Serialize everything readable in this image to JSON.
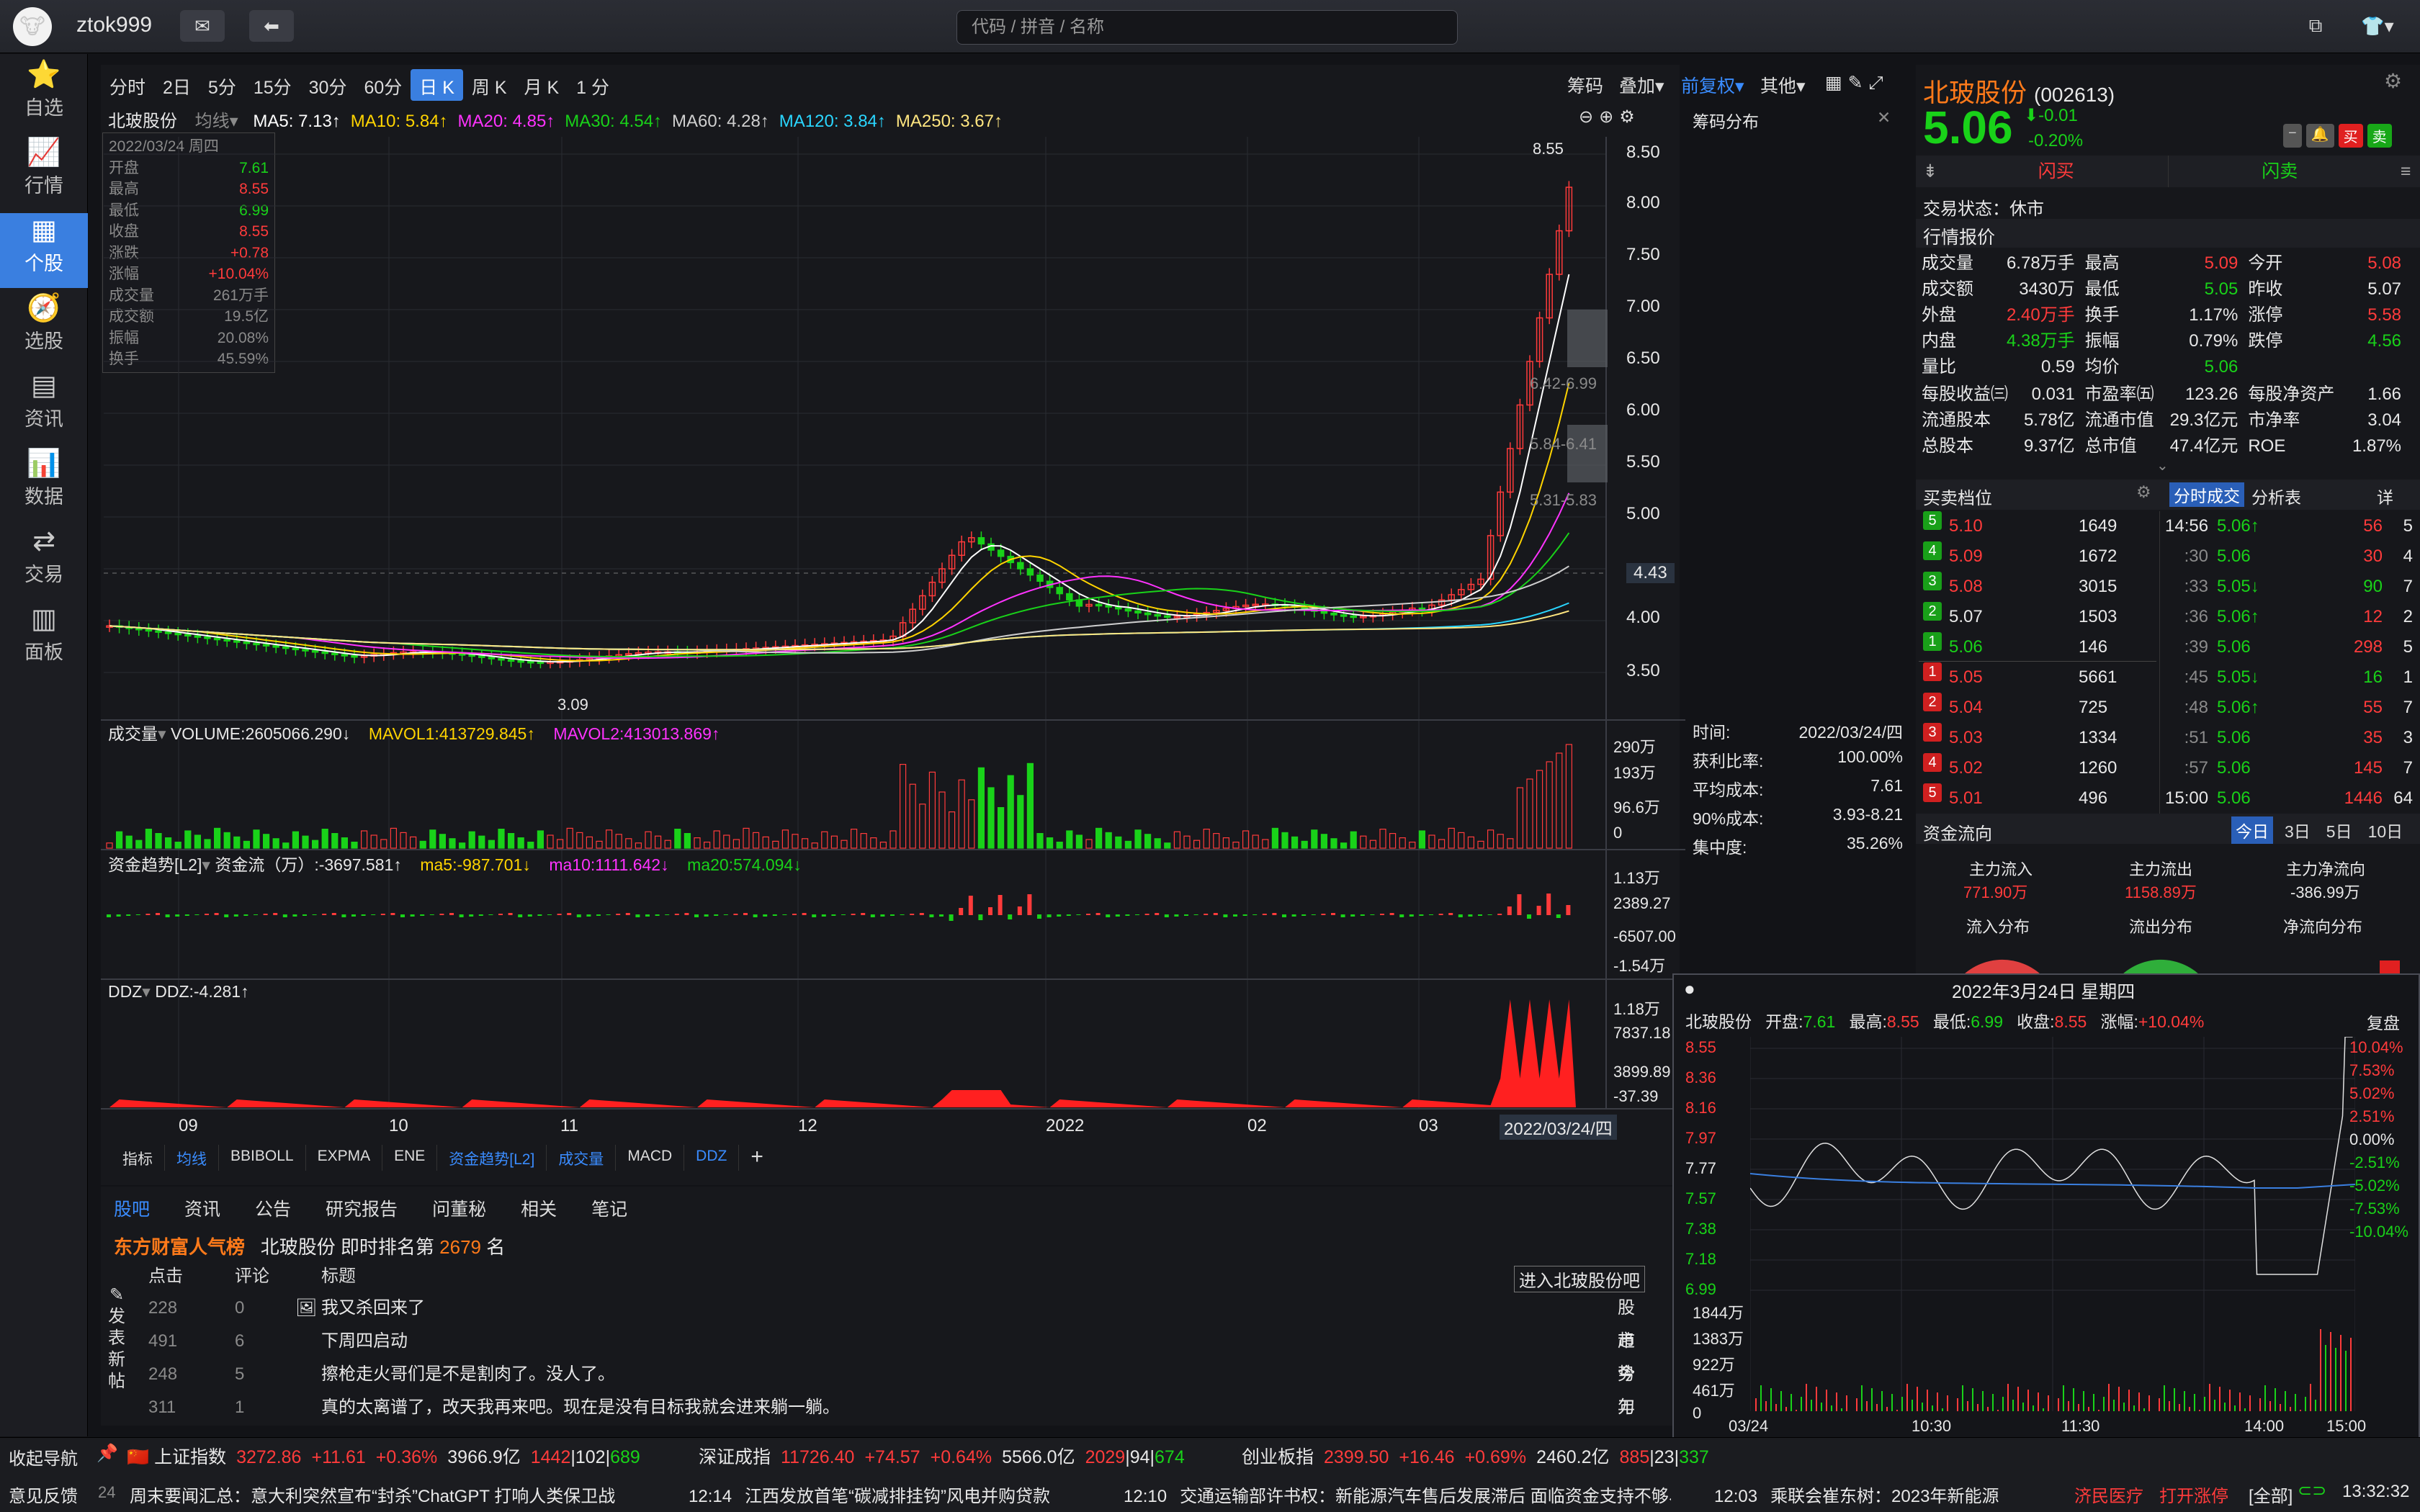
{
  "app": {
    "user": "ztok999",
    "search_placeholder": "代码 / 拼音 / 名称"
  },
  "nav": [
    {
      "label": "自选",
      "icon": "star-icon"
    },
    {
      "label": "行情",
      "icon": "chart-line-icon"
    },
    {
      "label": "个股",
      "icon": "grid-icon"
    },
    {
      "label": "选股",
      "icon": "compass-icon"
    },
    {
      "label": "资讯",
      "icon": "news-icon"
    },
    {
      "label": "数据",
      "icon": "bar-chart-icon"
    },
    {
      "label": "交易",
      "icon": "trade-icon"
    },
    {
      "label": "面板",
      "icon": "panel-icon"
    }
  ],
  "periods": [
    "分时",
    "2日",
    "5分",
    "15分",
    "30分",
    "60分",
    "日 K",
    "周 K",
    "月 K",
    "1 分"
  ],
  "period_selected": "日 K",
  "toolbar_right": {
    "chip": "筹码",
    "overlay": "叠加",
    "adjust": "前复权",
    "other": "其他"
  },
  "stock": {
    "name": "北玻股份",
    "code": "(002613)",
    "price": "5.06",
    "change": "-0.01",
    "pct": "-0.20%",
    "ma_label": "均线",
    "chip_title": "筹码分布"
  },
  "ma": [
    {
      "t": "MA5: 7.13",
      "c": "#ffffff"
    },
    {
      "t": "MA10: 5.84",
      "c": "#ffd400"
    },
    {
      "t": "MA20: 4.85",
      "c": "#ff33ff"
    },
    {
      "t": "MA30: 4.54",
      "c": "#19d219"
    },
    {
      "t": "MA60: 4.28",
      "c": "#cfcfcf"
    },
    {
      "t": "MA120: 3.84",
      "c": "#2ad6ff"
    },
    {
      "t": "MA250: 3.67",
      "c": "#ffe680"
    }
  ],
  "infobox": {
    "date": "2022/03/24 周四",
    "rows": [
      [
        "开盘",
        "7.61",
        "grn"
      ],
      [
        "最高",
        "8.55",
        "red"
      ],
      [
        "最低",
        "6.99",
        "grn"
      ],
      [
        "收盘",
        "8.55",
        "red"
      ],
      [
        "涨跌",
        "+0.78",
        "red"
      ],
      [
        "涨幅",
        "+10.04%",
        "red"
      ],
      [
        "成交量",
        "261万手",
        "gry"
      ],
      [
        "成交额",
        "19.5亿",
        "gry"
      ],
      [
        "振幅",
        "20.08%",
        "gry"
      ],
      [
        "换手",
        "45.59%",
        "gry"
      ]
    ]
  },
  "price_axis": [
    "8.50",
    "8.00",
    "7.50",
    "7.00",
    "6.50",
    "6.00",
    "5.50",
    "5.00",
    "4.43",
    "4.00",
    "3.50"
  ],
  "price_marks": {
    "high": "8.55",
    "low": "3.09"
  },
  "chip_labels": [
    "6.42-6.99",
    "5.84-6.41",
    "5.31-5.83"
  ],
  "chip_info": {
    "rows": [
      [
        "时间:",
        "2022/03/24/四"
      ],
      [
        "获利比率:",
        "100.00%"
      ],
      [
        "平均成本:",
        "7.61"
      ],
      [
        "90%成本:",
        "3.93-8.21"
      ],
      [
        "集中度:",
        "35.26%"
      ]
    ]
  },
  "volume": {
    "name": "成交量",
    "v": "VOLUME:2605066.290↓",
    "m1": "MAVOL1:413729.845↑",
    "m2": "MAVOL2:413013.869↑",
    "axis": [
      "290万",
      "193万",
      "96.6万",
      "0"
    ]
  },
  "capital": {
    "name": "资金趋势[L2]",
    "v": "资金流（万）:-3697.581↑",
    "m5": "ma5:-987.701↓",
    "m10": "ma10:1111.642↓",
    "m20": "ma20:574.094↓",
    "axis": [
      "1.13万",
      "2389.27",
      "-6507.00",
      "-1.54万"
    ]
  },
  "ddz": {
    "name": "DDZ",
    "v": "DDZ:-4.281↑",
    "axis": [
      "1.18万",
      "7837.18",
      "3899.89",
      "-37.39"
    ]
  },
  "x_axis": [
    "09",
    "10",
    "11",
    "12",
    "2022",
    "02",
    "03"
  ],
  "x_cursor": "2022/03/24/四",
  "indicator_tabs": [
    "指标",
    "均线",
    "BBIBOLL",
    "EXPMA",
    "ENE",
    "资金趋势[L2]",
    "成交量",
    "MACD",
    "DDZ"
  ],
  "forum": {
    "tabs": [
      "股吧",
      "资讯",
      "公告",
      "研究报告",
      "问董秘",
      "相关",
      "笔记"
    ],
    "brand": "东方财富人气榜",
    "rank_pre": "北玻股份  即时排名第",
    "rank": "2679",
    "rank_suf": "名",
    "enter": "进入北玻股份吧",
    "post_btn": "发表新帖",
    "cols": [
      "点击",
      "评论",
      "标题"
    ],
    "rows": [
      [
        "228",
        "0",
        "我又杀回来了",
        "股市"
      ],
      [
        "491",
        "6",
        "下周四启动",
        "趋势"
      ],
      [
        "248",
        "5",
        "擦枪走火哥们是不是割肉了。没人了。",
        "今年"
      ],
      [
        "311",
        "1",
        "真的太离谱了，改天我再来吧。现在是没有目标我就会进来躺一躺。",
        "刀"
      ]
    ]
  },
  "quote": {
    "status": "交易状态：休市",
    "buy": "闪买",
    "sell": "闪卖",
    "section": "行情报价",
    "grid": [
      [
        [
          "成交量",
          "6.78万手",
          "wht"
        ],
        [
          "最高",
          "5.09",
          "red"
        ],
        [
          "今开",
          "5.08",
          "red"
        ]
      ],
      [
        [
          "成交额",
          "3430万",
          "wht"
        ],
        [
          "最低",
          "5.05",
          "grn"
        ],
        [
          "昨收",
          "5.07",
          "wht"
        ]
      ],
      [
        [
          "外盘",
          "2.40万手",
          "red"
        ],
        [
          "换手",
          "1.17%",
          "wht"
        ],
        [
          "涨停",
          "5.58",
          "red"
        ]
      ],
      [
        [
          "内盘",
          "4.38万手",
          "grn"
        ],
        [
          "振幅",
          "0.79%",
          "wht"
        ],
        [
          "跌停",
          "4.56",
          "grn"
        ]
      ],
      [
        [
          "量比",
          "0.59",
          "wht"
        ],
        [
          "均价",
          "5.06",
          "grn"
        ],
        [
          "",
          "",
          " "
        ]
      ]
    ],
    "grid2": [
      [
        [
          "每股收益㈢",
          "0.031"
        ],
        [
          "市盈率㈤",
          "123.26"
        ],
        [
          "每股净资产",
          "1.66"
        ]
      ],
      [
        [
          "流通股本",
          "5.78亿"
        ],
        [
          "流通市值",
          "29.3亿元"
        ],
        [
          "市净率",
          "3.04"
        ]
      ],
      [
        [
          "总股本",
          "9.37亿"
        ],
        [
          "总市值",
          "47.4亿元"
        ],
        [
          "ROE",
          "1.87%"
        ]
      ]
    ]
  },
  "orderbook": {
    "title": "买卖档位",
    "tab1": "分时成交",
    "tab2": "分析表",
    "tab3": "详",
    "asks": [
      [
        "5",
        "5.10",
        "1649"
      ],
      [
        "4",
        "5.09",
        "1672"
      ],
      [
        "3",
        "5.08",
        "3015"
      ],
      [
        "2",
        "5.07",
        "1503"
      ],
      [
        "1",
        "5.06",
        "146"
      ]
    ],
    "bids": [
      [
        "1",
        "5.05",
        "5661"
      ],
      [
        "2",
        "5.04",
        "725"
      ],
      [
        "3",
        "5.03",
        "1334"
      ],
      [
        "4",
        "5.02",
        "1260"
      ],
      [
        "5",
        "5.01",
        "496"
      ]
    ],
    "ticks": [
      [
        "14:56",
        "5.06↑",
        "56",
        "5",
        "red"
      ],
      [
        ":30",
        "5.06",
        "30",
        "4",
        "red"
      ],
      [
        ":33",
        "5.05↓",
        "90",
        "7",
        "grn"
      ],
      [
        ":36",
        "5.06↑",
        "12",
        "2",
        "red"
      ],
      [
        ":39",
        "5.06",
        "298",
        "5",
        "red"
      ],
      [
        ":45",
        "5.05↓",
        "16",
        "1",
        "grn"
      ],
      [
        ":48",
        "5.06↑",
        "55",
        "7",
        "red"
      ],
      [
        ":51",
        "5.06",
        "35",
        "3",
        "red"
      ],
      [
        ":57",
        "5.06",
        "145",
        "7",
        "red"
      ],
      [
        "15:00",
        "5.06",
        "1446",
        "64",
        "red"
      ]
    ]
  },
  "flow": {
    "title": "资金流向",
    "tabs": [
      "今日",
      "3日",
      "5日",
      "10日"
    ],
    "in_label": "主力流入",
    "in": "771.90万",
    "out_label": "主力流出",
    "out": "1158.89万",
    "net_label": "主力净流向",
    "net": "-386.99万",
    "d1": "流入分布",
    "d2": "流出分布",
    "d3": "净流向分布"
  },
  "popup": {
    "title": "2022年3月24日 星期四",
    "name": "北玻股份",
    "open_l": "开盘:",
    "open": "7.61",
    "high_l": "最高:",
    "high": "8.55",
    "low_l": "最低:",
    "low": "6.99",
    "close_l": "收盘:",
    "close": "8.55",
    "pct_l": "涨幅:",
    "pct": "+10.04%",
    "replay": "复盘",
    "left_axis": [
      "8.55",
      "8.36",
      "8.16",
      "7.97",
      "7.77",
      "7.57",
      "7.38",
      "7.18",
      "6.99"
    ],
    "right_axis": [
      "10.04%",
      "7.53%",
      "5.02%",
      "2.51%",
      "0.00%",
      "-2.51%",
      "-5.02%",
      "-7.53%",
      "-10.04%"
    ],
    "vol_axis": [
      "1844万",
      "1383万",
      "922万",
      "461万",
      "0"
    ],
    "x": [
      "03/24",
      "10:30",
      "11:30",
      "14:00",
      "15:00"
    ]
  },
  "indices": [
    {
      "name": "上证指数",
      "v": "3272.86",
      "c": "+11.61",
      "p": "+0.36%",
      "a": "3966.9亿",
      "u": "1442",
      "e": "102",
      "d": "689"
    },
    {
      "name": "深证成指",
      "v": "11726.40",
      "c": "+74.57",
      "p": "+0.64%",
      "a": "5566.0亿",
      "u": "2029",
      "e": "94",
      "d": "674"
    },
    {
      "name": "创业板指",
      "v": "2399.50",
      "c": "+16.46",
      "p": "+0.69%",
      "a": "2460.2亿",
      "u": "885",
      "e": "23",
      "d": "337"
    }
  ],
  "status": {
    "nav": "收起导航",
    "feedback": "意见反馈",
    "count": "24",
    "news": [
      [
        "",
        "周末要闻汇总：意大利突然宣布“封杀”ChatGPT 打响人类保卫战"
      ],
      [
        "12:14",
        "江西发放首笔“碳减排挂钩”风电并购贷款"
      ],
      [
        "12:10",
        "交通运输部许书权：新能源汽车售后发展滞后 面临资金支持不够、"
      ],
      [
        "12:03",
        "乘联会崔东树：2023年新能源"
      ]
    ],
    "tag1": "济民医疗",
    "tag2": "打开涨停",
    "all": "[全部]",
    "time": "13:32:32"
  }
}
